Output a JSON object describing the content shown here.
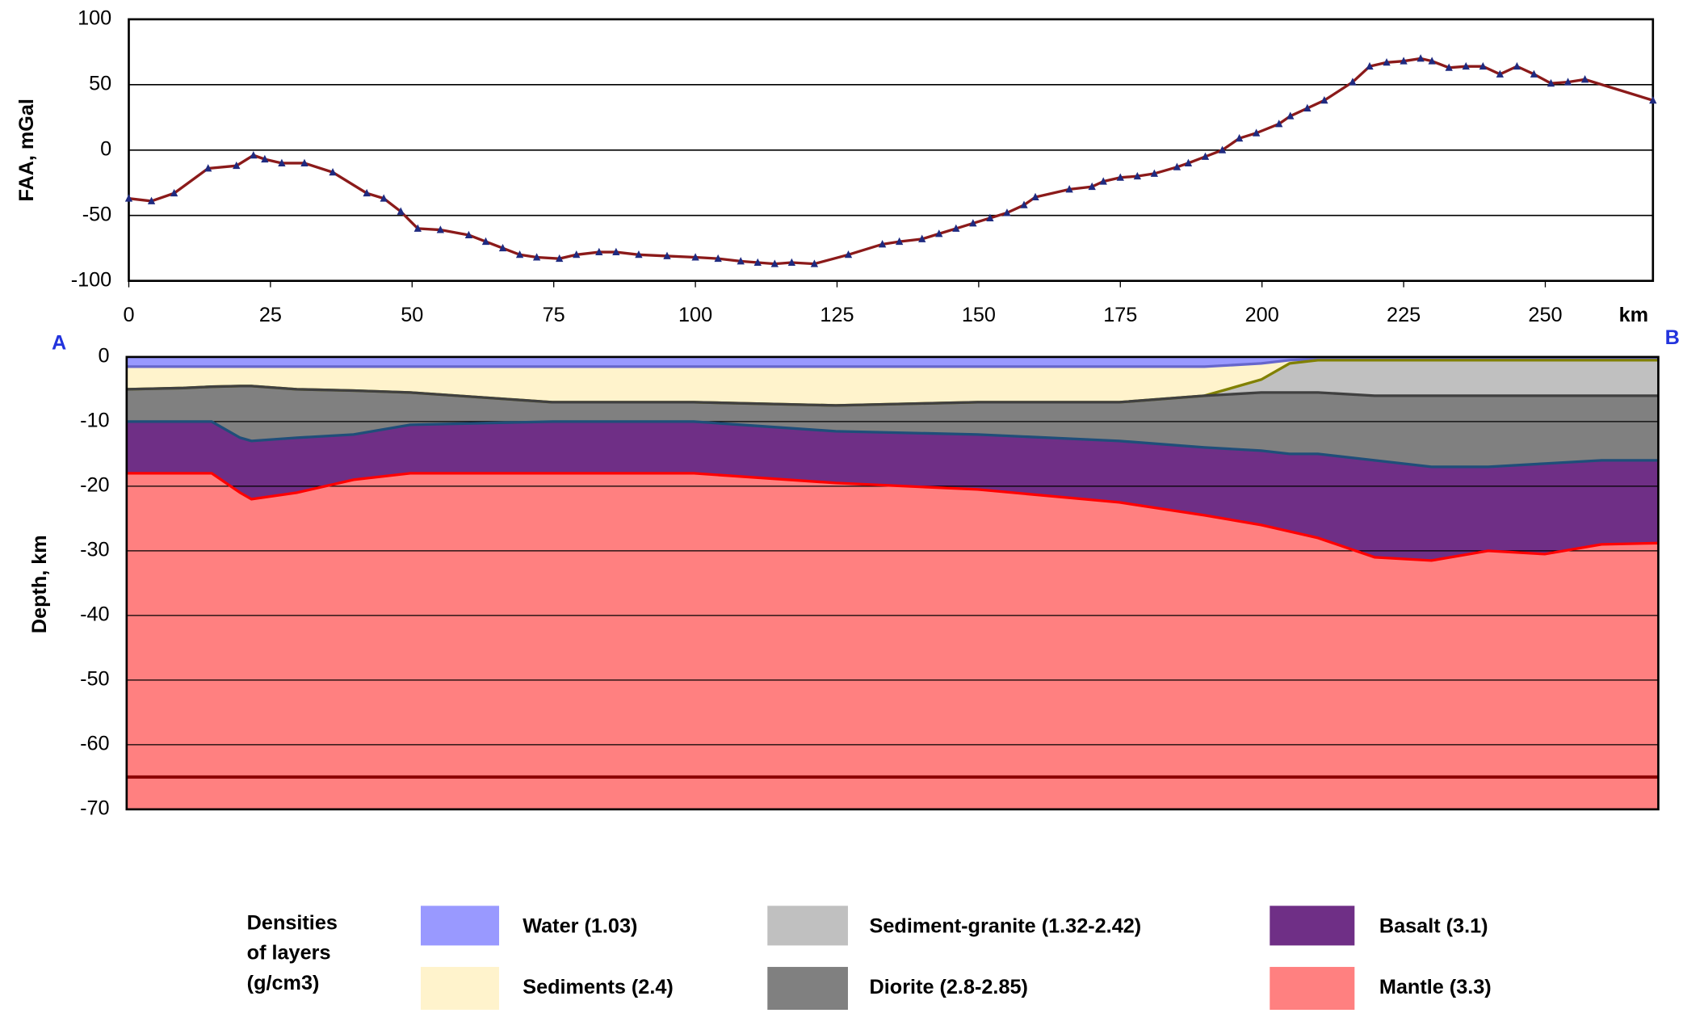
{
  "chart_data": [
    {
      "type": "line",
      "ylabel": "FAA, mGal",
      "xlabel": "km",
      "x": [
        0,
        4,
        8,
        14,
        19,
        22,
        24,
        27,
        31,
        36,
        42,
        45,
        48,
        51,
        55,
        60,
        63,
        66,
        69,
        72,
        76,
        79,
        83,
        86,
        90,
        95,
        100,
        104,
        108,
        111,
        114,
        117,
        121,
        127,
        133,
        136,
        140,
        143,
        146,
        149,
        152,
        155,
        158,
        160,
        166,
        170,
        172,
        175,
        178,
        181,
        185,
        187,
        190,
        193,
        196,
        199,
        203,
        205,
        208,
        211,
        216,
        219,
        222,
        225,
        228,
        230,
        233,
        236,
        239,
        242,
        245,
        248,
        251,
        254,
        257,
        269
      ],
      "series": [
        {
          "color": "#8b1a1a",
          "marker_color": "#1f2a80",
          "values": [
            -37,
            -39,
            -33,
            -14,
            -12,
            -4,
            -7,
            -10,
            -10,
            -17,
            -33,
            -37,
            -47,
            -60,
            -61,
            -65,
            -70,
            -75,
            -80,
            -82,
            -83,
            -80,
            -78,
            -78,
            -80,
            -81,
            -82,
            -83,
            -85,
            -86,
            -87,
            -86,
            -87,
            -80,
            -72,
            -70,
            -68,
            -64,
            -60,
            -56,
            -52,
            -48,
            -42,
            -36,
            -30,
            -28,
            -24,
            -21,
            -20,
            -18,
            -13,
            -10,
            -5,
            0,
            9,
            13,
            20,
            26,
            32,
            38,
            52,
            64,
            67,
            68,
            70,
            68,
            63,
            64,
            64,
            58,
            64,
            58,
            51,
            52,
            54,
            38
          ]
        }
      ],
      "xlim": [
        0,
        269
      ],
      "xticks": [
        0,
        25,
        50,
        75,
        100,
        125,
        150,
        175,
        200,
        225,
        250
      ],
      "ylim": [
        -100,
        100
      ],
      "yticks": [
        -100,
        -50,
        0,
        50,
        100
      ],
      "grid": true
    },
    {
      "type": "layers",
      "ylabel": "Depth, km",
      "start_label": "A",
      "end_label": "B",
      "legend_title": [
        "Densities",
        "of layers",
        "(g/cm3)"
      ],
      "x": [
        0,
        10,
        15,
        20,
        22,
        30,
        40,
        50,
        75,
        100,
        125,
        150,
        175,
        190,
        200,
        205,
        210,
        220,
        230,
        240,
        250,
        260,
        270
      ],
      "series": [
        {
          "name": "Water (1.03)",
          "color": "#9999ff",
          "edge": "#6666cc",
          "values": [
            -1.5,
            -1.5,
            -1.5,
            -1.5,
            -1.5,
            -1.5,
            -1.5,
            -1.5,
            -1.5,
            -1.5,
            -1.5,
            -1.5,
            -1.5,
            -1.5,
            -1,
            -0.5,
            -0.3,
            -0.3,
            -0.3,
            -0.3,
            -0.3,
            -0.3,
            -0.3
          ]
        },
        {
          "name": "Sediments (2.4)",
          "color": "#fff3cc",
          "edge": "#808000",
          "values": [
            -5,
            -4.8,
            -4.6,
            -4.5,
            -4.5,
            -5,
            -5.2,
            -5.5,
            -7,
            -7,
            -7.5,
            -7,
            -7,
            -6,
            -3.5,
            -1,
            -0.5,
            -0.5,
            -0.5,
            -0.5,
            -0.5,
            -0.5,
            -0.5
          ]
        },
        {
          "name": "Sediment-granite (1.32-2.42)",
          "color": "#c0c0c0",
          "edge": "#404040",
          "values": [
            -5,
            -4.8,
            -4.6,
            -4.5,
            -4.5,
            -5,
            -5.2,
            -5.5,
            -7,
            -7,
            -7.5,
            -7,
            -7,
            -6,
            -5.5,
            -5.5,
            -5.5,
            -6,
            -6,
            -6,
            -6,
            -6,
            -6
          ]
        },
        {
          "name": "Diorite (2.8-2.85)",
          "color": "#808080",
          "edge": "#1f4e79",
          "values": [
            -10,
            -10,
            -10,
            -12.5,
            -13,
            -12.5,
            -12,
            -10.5,
            -10,
            -10,
            -11.5,
            -12,
            -13,
            -14,
            -14.5,
            -15,
            -15,
            -16,
            -17,
            -17,
            -16.5,
            -16,
            -16
          ]
        },
        {
          "name": "Basalt (3.1)",
          "color": "#6f2f86",
          "edge": "#ff0000",
          "values": [
            -18,
            -18,
            -18,
            -21,
            -22,
            -21,
            -19,
            -18,
            -18,
            -18,
            -19.5,
            -20.5,
            -22.5,
            -24.5,
            -26,
            -27,
            -28,
            -31,
            -31.5,
            -30,
            -30.5,
            -29,
            -28.8
          ]
        },
        {
          "name": "Mantle (3.3)",
          "color": "#ff8080",
          "edge": "#ff8080",
          "values": [
            -70,
            -70,
            -70,
            -70,
            -70,
            -70,
            -70,
            -70,
            -70,
            -70,
            -70,
            -70,
            -70,
            -70,
            -70,
            -70,
            -70,
            -70,
            -70,
            -70,
            -70,
            -70,
            -70
          ]
        }
      ],
      "reference_line": -65,
      "reference_color": "#8b0000",
      "xlim": [
        0,
        270
      ],
      "ylim": [
        -70,
        0
      ],
      "yticks": [
        -70,
        -60,
        -50,
        -40,
        -30,
        -20,
        -10,
        0
      ],
      "grid": true
    }
  ]
}
